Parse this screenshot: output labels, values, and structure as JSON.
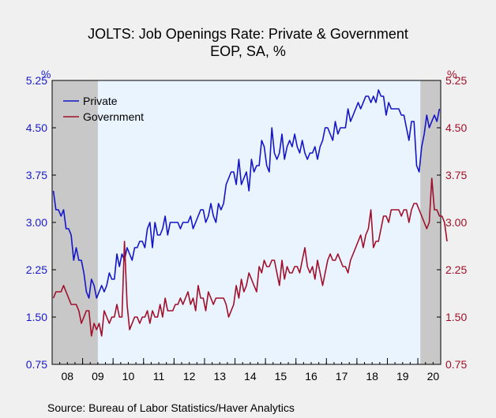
{
  "title": "JOLTS: Job Openings Rate: Private & Government",
  "subtitle": "EOP, SA, %",
  "source": "Source:  Bureau of Labor Statistics/Haver Analytics",
  "colors": {
    "private": "#1515c8",
    "government": "#a0102a",
    "recession": "#c8c8c8",
    "plot_bg": "#eaf4ff",
    "left_axis": "#1a1acc",
    "right_axis": "#a0102a"
  },
  "chart_data": {
    "type": "line",
    "title": "JOLTS: Job Openings Rate: Private & Government",
    "subtitle": "EOP, SA, %",
    "ylabel_left": "%",
    "ylabel_right": "%",
    "ylim": [
      0.75,
      5.25
    ],
    "yticks": [
      "0.75",
      "1.50",
      "2.25",
      "3.00",
      "3.75",
      "4.50",
      "5.25"
    ],
    "xlabels": [
      "08",
      "09",
      "10",
      "11",
      "12",
      "13",
      "14",
      "15",
      "16",
      "17",
      "18",
      "19",
      "20"
    ],
    "x_start": "2008-01",
    "x_end": "2020-09",
    "legend_position": "top-left",
    "recession_shading": [
      [
        "2008-01",
        "2009-06"
      ],
      [
        "2020-02",
        "2020-09"
      ]
    ],
    "series": [
      {
        "name": "Private",
        "color": "#1515c8",
        "freq": "monthly",
        "start": "2008-01",
        "values": [
          3.5,
          3.2,
          3.2,
          3.1,
          3.2,
          2.9,
          2.9,
          2.8,
          2.4,
          2.6,
          2.4,
          2.4,
          2.2,
          1.9,
          1.8,
          2.1,
          2.0,
          1.8,
          1.9,
          2.0,
          1.9,
          2.0,
          2.2,
          2.1,
          2.1,
          2.5,
          2.3,
          2.5,
          2.4,
          2.6,
          2.5,
          2.4,
          2.6,
          2.6,
          2.7,
          2.7,
          2.6,
          2.9,
          3.0,
          2.6,
          3.0,
          2.8,
          2.8,
          2.9,
          3.1,
          2.8,
          3.0,
          3.0,
          3.0,
          3.0,
          2.9,
          3.0,
          3.0,
          3.0,
          3.1,
          2.9,
          3.0,
          3.1,
          3.2,
          3.2,
          3.0,
          3.1,
          3.3,
          3.1,
          3.0,
          3.3,
          3.2,
          3.3,
          3.6,
          3.7,
          3.8,
          3.8,
          3.6,
          4.0,
          3.6,
          3.7,
          3.8,
          3.5,
          4.0,
          3.8,
          3.9,
          3.9,
          4.3,
          4.2,
          3.9,
          3.8,
          4.5,
          4.1,
          4.0,
          4.1,
          4.4,
          4.0,
          4.2,
          4.3,
          4.2,
          4.4,
          4.2,
          4.1,
          4.3,
          4.1,
          4.0,
          4.1,
          4.1,
          4.2,
          4.0,
          4.2,
          4.3,
          4.5,
          4.5,
          4.4,
          4.3,
          4.6,
          4.4,
          4.5,
          4.5,
          4.5,
          4.8,
          4.6,
          4.7,
          4.8,
          4.9,
          4.8,
          4.9,
          5.0,
          5.0,
          4.9,
          5.0,
          4.9,
          5.1,
          5.0,
          5.0,
          4.7,
          4.9,
          4.8,
          4.8,
          4.8,
          4.8,
          4.7,
          4.7,
          4.5,
          4.3,
          4.6,
          4.6,
          3.9,
          3.8,
          4.2,
          4.4,
          4.7,
          4.5,
          4.6,
          4.7,
          4.6,
          4.8
        ]
      },
      {
        "name": "Government",
        "color": "#a0102a",
        "freq": "monthly",
        "start": "2008-01",
        "values": [
          1.8,
          1.9,
          1.9,
          1.9,
          2.0,
          1.9,
          1.8,
          1.7,
          1.7,
          1.7,
          1.6,
          1.4,
          1.5,
          1.6,
          1.6,
          1.2,
          1.4,
          1.3,
          1.4,
          1.2,
          1.6,
          1.5,
          1.4,
          1.5,
          1.5,
          1.7,
          1.5,
          1.5,
          2.7,
          1.7,
          1.3,
          1.4,
          1.5,
          1.5,
          1.4,
          1.5,
          1.5,
          1.6,
          1.4,
          1.6,
          1.5,
          1.5,
          1.7,
          1.5,
          1.8,
          1.6,
          1.6,
          1.6,
          1.7,
          1.7,
          1.8,
          1.7,
          1.8,
          1.9,
          1.7,
          1.8,
          1.6,
          2.0,
          1.8,
          1.8,
          1.6,
          1.9,
          1.8,
          1.7,
          1.8,
          1.8,
          1.8,
          1.8,
          1.7,
          1.5,
          1.6,
          1.7,
          2.0,
          1.8,
          2.1,
          1.9,
          2.0,
          2.2,
          2.1,
          2.0,
          1.9,
          2.3,
          2.2,
          2.4,
          2.3,
          2.3,
          2.4,
          2.4,
          2.2,
          2.0,
          2.4,
          2.1,
          2.3,
          2.2,
          2.2,
          2.3,
          2.3,
          2.2,
          2.4,
          2.6,
          2.3,
          2.2,
          2.3,
          2.1,
          2.4,
          2.2,
          2.0,
          2.2,
          2.4,
          2.5,
          2.4,
          2.4,
          2.5,
          2.4,
          2.3,
          2.3,
          2.2,
          2.4,
          2.5,
          2.6,
          2.7,
          2.8,
          2.6,
          2.8,
          2.9,
          3.2,
          2.6,
          2.7,
          2.7,
          2.9,
          3.1,
          3.1,
          3.0,
          3.2,
          3.2,
          3.2,
          3.2,
          3.1,
          3.2,
          3.2,
          3.0,
          3.2,
          3.3,
          3.3,
          3.2,
          3.1,
          3.0,
          2.9,
          3.0,
          3.7,
          3.2,
          3.2,
          3.1,
          3.1,
          3.0,
          2.7
        ]
      }
    ]
  }
}
